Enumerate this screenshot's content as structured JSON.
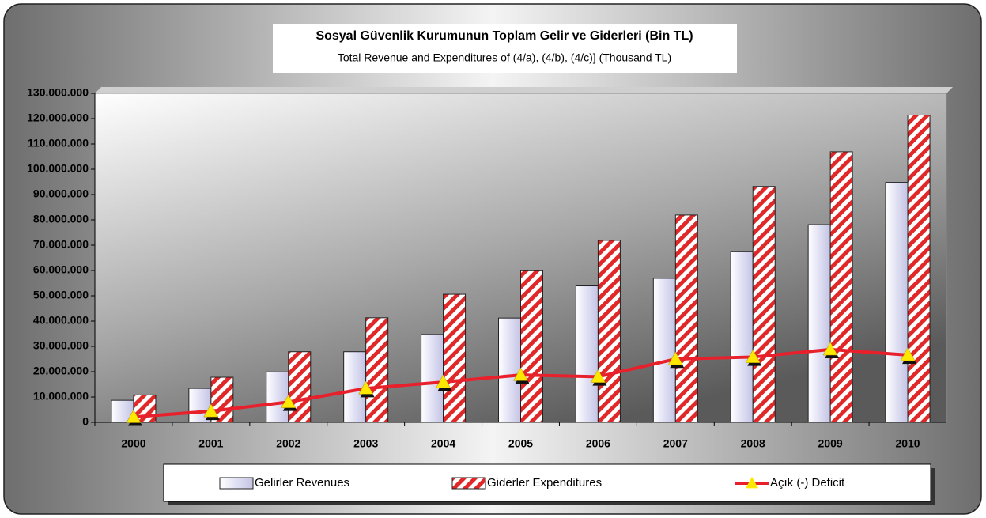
{
  "chart_data": {
    "type": "bar",
    "title": "Sosyal Güvenlik Kurumunun Toplam Gelir ve Giderleri   (Bin TL)",
    "subtitle": "Total Revenue and Expenditures of  (4/a),  (4/b),  (4/c)] (Thousand TL)",
    "categories": [
      "2000",
      "2001",
      "2002",
      "2003",
      "2004",
      "2005",
      "2006",
      "2007",
      "2008",
      "2009",
      "2010"
    ],
    "series": [
      {
        "name": "Gelirler Revenues",
        "color": "#d9d9f2",
        "type": "bar",
        "values": [
          8700000,
          13400000,
          19900000,
          27900000,
          34700000,
          41200000,
          53900000,
          56900000,
          67400000,
          78100000,
          94800000
        ]
      },
      {
        "name": "Giderler Expenditures",
        "color": "#e02828",
        "type": "bar",
        "hatch": true,
        "values": [
          10800000,
          17800000,
          27900000,
          41300000,
          50600000,
          59900000,
          71900000,
          81900000,
          93200000,
          106900000,
          121400000
        ]
      },
      {
        "name": "Açık (-) Deficit",
        "color": "#e8202c",
        "marker_color": "#ffe800",
        "type": "line",
        "values": [
          2100000,
          4400000,
          8000000,
          13400000,
          15900000,
          18700000,
          18000000,
          25000000,
          25800000,
          28800000,
          26600000
        ]
      }
    ],
    "ylim": [
      0,
      130000000
    ],
    "yticks": [
      0,
      {
        "value": 10000000,
        "label": "10.000.000"
      },
      {
        "value": 20000000,
        "label": "20.000.000"
      },
      {
        "value": 30000000,
        "label": "30.000.000"
      },
      {
        "value": 40000000,
        "label": "40.000.000"
      },
      {
        "value": 50000000,
        "label": "50.000.000"
      },
      {
        "value": 60000000,
        "label": "60.000.000"
      },
      {
        "value": 70000000,
        "label": "70.000.000"
      },
      {
        "value": 80000000,
        "label": "80.000.000"
      },
      {
        "value": 90000000,
        "label": "90.000.000"
      },
      {
        "value": 100000000,
        "label": "100.000.000"
      },
      {
        "value": 110000000,
        "label": "110.000.000"
      },
      {
        "value": 120000000,
        "label": "120.000.000"
      },
      {
        "value": 130000000,
        "label": "130.000.000"
      }
    ],
    "grid": false
  }
}
